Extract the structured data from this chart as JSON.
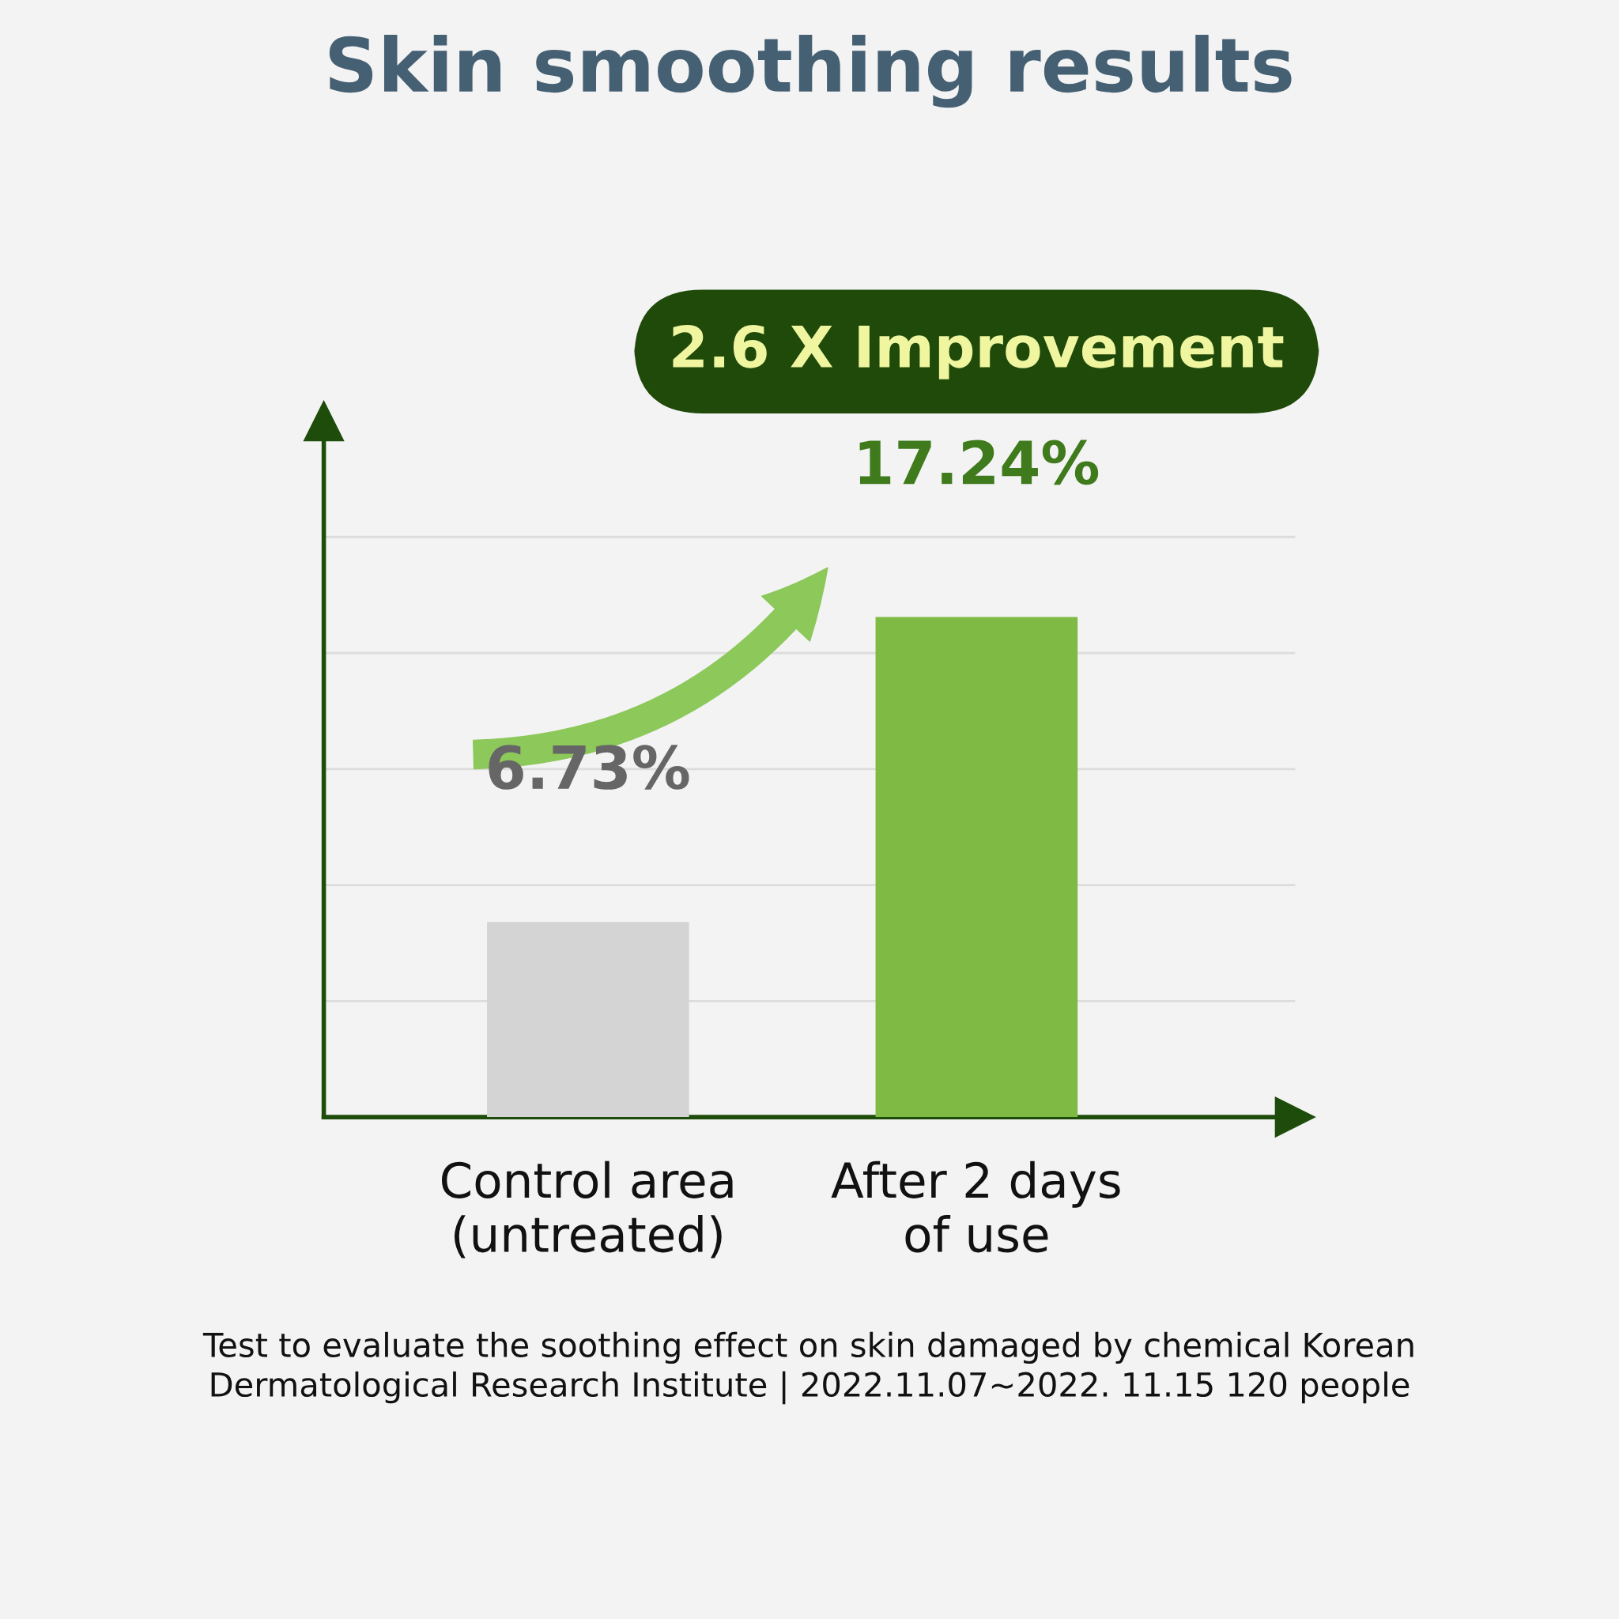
{
  "chart_data": {
    "type": "bar",
    "title": "Skin smoothing results",
    "categories": [
      "Control area\n(untreated)",
      "After 2 days\nof use"
    ],
    "values": [
      6.73,
      17.24
    ],
    "colors": [
      "#d4d4d4",
      "#7fba45"
    ],
    "value_labels": [
      "6.73%",
      "17.24%"
    ],
    "ylim": [
      0,
      24
    ],
    "yticks": [
      {
        "value": 4,
        "label": null
      },
      {
        "value": 8,
        "label": null
      },
      {
        "value": 12,
        "label": null
      },
      {
        "value": 16,
        "label": null
      },
      {
        "value": 20,
        "label": null
      }
    ],
    "grid": "y",
    "annotations": [
      "2.6 X Improvement",
      "Test to evaluate the soothing effect on skin damaged by chemical Korean\nDermatological Research Institute | 2022.11.07~2022. 11.15 120 people"
    ]
  }
}
